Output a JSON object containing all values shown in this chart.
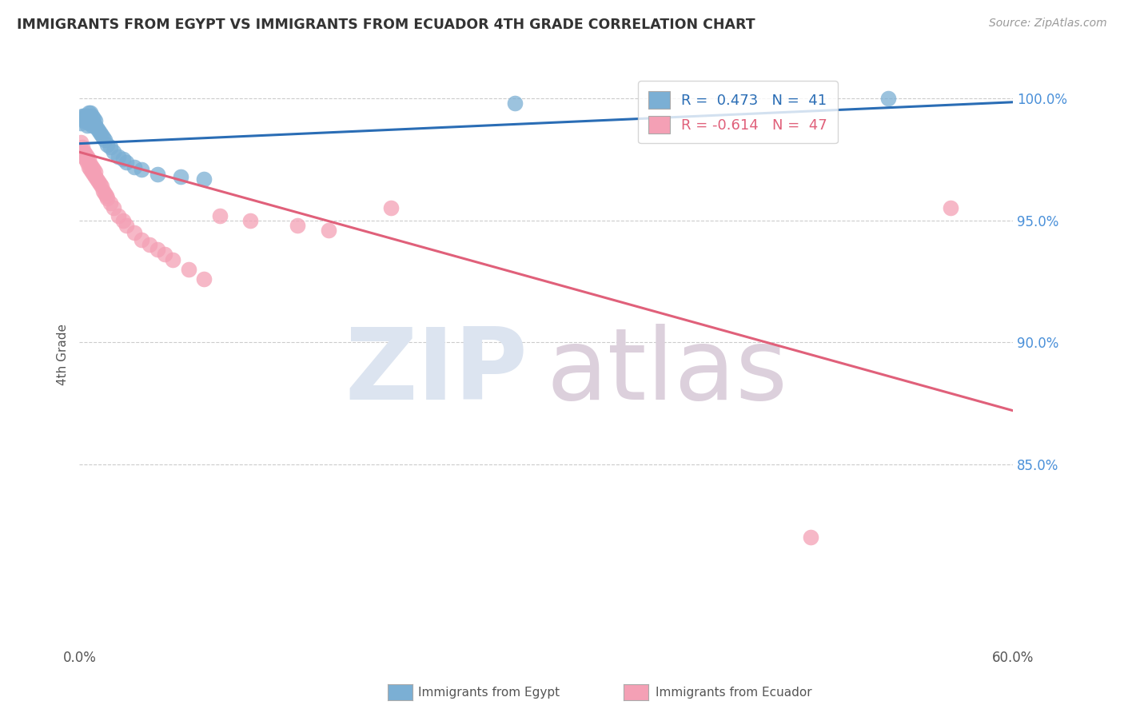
{
  "title": "IMMIGRANTS FROM EGYPT VS IMMIGRANTS FROM ECUADOR 4TH GRADE CORRELATION CHART",
  "source": "Source: ZipAtlas.com",
  "ylabel": "4th Grade",
  "ytick_labels": [
    "100.0%",
    "95.0%",
    "90.0%",
    "85.0%"
  ],
  "ytick_values": [
    1.0,
    0.95,
    0.9,
    0.85
  ],
  "xlim": [
    0.0,
    0.6
  ],
  "ylim": [
    0.775,
    1.015
  ],
  "egypt_color": "#7bafd4",
  "ecuador_color": "#f4a0b5",
  "egypt_line_color": "#2a6db5",
  "ecuador_line_color": "#e0607a",
  "egypt_scatter_x": [
    0.001,
    0.002,
    0.003,
    0.003,
    0.004,
    0.004,
    0.005,
    0.005,
    0.005,
    0.006,
    0.006,
    0.006,
    0.007,
    0.007,
    0.007,
    0.008,
    0.008,
    0.008,
    0.009,
    0.009,
    0.01,
    0.01,
    0.011,
    0.012,
    0.013,
    0.014,
    0.015,
    0.016,
    0.018,
    0.02,
    0.022,
    0.025,
    0.028,
    0.03,
    0.035,
    0.04,
    0.05,
    0.065,
    0.08,
    0.28,
    0.52
  ],
  "egypt_scatter_y": [
    0.99,
    0.993,
    0.991,
    0.993,
    0.991,
    0.993,
    0.989,
    0.991,
    0.993,
    0.99,
    0.992,
    0.994,
    0.99,
    0.992,
    0.994,
    0.989,
    0.991,
    0.993,
    0.99,
    0.992,
    0.989,
    0.991,
    0.988,
    0.987,
    0.986,
    0.985,
    0.984,
    0.983,
    0.981,
    0.98,
    0.978,
    0.976,
    0.975,
    0.974,
    0.972,
    0.971,
    0.969,
    0.968,
    0.967,
    0.998,
    1.0
  ],
  "ecuador_scatter_x": [
    0.001,
    0.002,
    0.002,
    0.003,
    0.003,
    0.004,
    0.004,
    0.005,
    0.005,
    0.006,
    0.006,
    0.007,
    0.007,
    0.008,
    0.008,
    0.009,
    0.009,
    0.01,
    0.01,
    0.011,
    0.012,
    0.013,
    0.014,
    0.015,
    0.016,
    0.017,
    0.018,
    0.02,
    0.022,
    0.025,
    0.028,
    0.03,
    0.035,
    0.04,
    0.045,
    0.05,
    0.055,
    0.06,
    0.07,
    0.08,
    0.09,
    0.11,
    0.14,
    0.16,
    0.2,
    0.47,
    0.56
  ],
  "ecuador_scatter_y": [
    0.982,
    0.978,
    0.98,
    0.976,
    0.978,
    0.975,
    0.977,
    0.974,
    0.976,
    0.972,
    0.975,
    0.971,
    0.973,
    0.97,
    0.972,
    0.969,
    0.971,
    0.968,
    0.97,
    0.967,
    0.966,
    0.965,
    0.964,
    0.962,
    0.961,
    0.96,
    0.959,
    0.957,
    0.955,
    0.952,
    0.95,
    0.948,
    0.945,
    0.942,
    0.94,
    0.938,
    0.936,
    0.934,
    0.93,
    0.926,
    0.952,
    0.95,
    0.948,
    0.946,
    0.955,
    0.82,
    0.955
  ],
  "egypt_trendline_x": [
    0.0,
    0.6
  ],
  "egypt_trendline_y": [
    0.9815,
    0.9985
  ],
  "ecuador_trendline_x": [
    0.0,
    0.6
  ],
  "ecuador_trendline_y": [
    0.978,
    0.872
  ],
  "background_color": "#ffffff",
  "grid_color": "#cccccc",
  "title_color": "#333333",
  "axis_label_color": "#555555",
  "right_tick_color": "#4a90d9",
  "watermark_zip_color": "#dce4f0",
  "watermark_atlas_color": "#dcd0dc"
}
